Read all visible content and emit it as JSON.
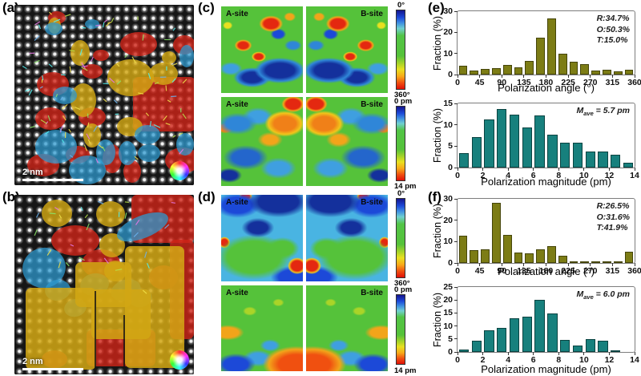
{
  "panel_a": {
    "label": "(a)",
    "scale_bar": "2 nm"
  },
  "panel_b": {
    "label": "(b)",
    "scale_bar": "2 nm"
  },
  "panel_c": {
    "label": "(c)",
    "angle_row": {
      "a_label": "A-site",
      "b_label": "B-site",
      "cbar_top": "0°",
      "cbar_bottom": "360°"
    },
    "magnitude_row": {
      "a_label": "A-site",
      "b_label": "B-site",
      "cbar_top": "0 pm",
      "cbar_bottom": "14 pm"
    }
  },
  "panel_d": {
    "label": "(d)",
    "angle_row": {
      "a_label": "A-site",
      "b_label": "B-site",
      "cbar_top": "0°",
      "cbar_bottom": "360°"
    },
    "magnitude_row": {
      "a_label": "A-site",
      "b_label": "B-site",
      "cbar_top": "0 pm",
      "cbar_bottom": "14 pm"
    }
  },
  "panel_e": {
    "label": "(e)"
  },
  "panel_f": {
    "label": "(f)"
  },
  "colors": {
    "olive_bar": "#7c7c15",
    "olive_edge": "#45450a",
    "teal_bar": "#17807d",
    "teal_edge": "#0a4341",
    "domain_red": "#cf2418",
    "domain_blue": "#2e9ad0",
    "domain_yellow": "#d2a714"
  },
  "chart_data": [
    {
      "id": "e_polarization_angle",
      "type": "bar",
      "xlabel": "Polarization angle (°)",
      "ylabel": "Fraction (%)",
      "xlim": [
        0,
        360
      ],
      "ylim": [
        0,
        30
      ],
      "xticks": [
        0,
        45,
        90,
        135,
        180,
        225,
        270,
        315,
        360
      ],
      "yticks": [
        0,
        10,
        20,
        30
      ],
      "bin_width": 22.5,
      "values": [
        4.3,
        1.8,
        2.5,
        2.9,
        4.6,
        3.4,
        6.4,
        17.5,
        26.5,
        10.0,
        6.2,
        5.0,
        1.9,
        2.2,
        1.5,
        2.4
      ],
      "annotation_lines": [
        "R:34.7%",
        "O:50.3%",
        "T:15.0%"
      ],
      "bar_color": "#7c7c15",
      "bar_edge": "#45450a"
    },
    {
      "id": "e_polarization_magnitude",
      "type": "bar",
      "xlabel": "Polarization magnitude (pm)",
      "ylabel": "Fraction (%)",
      "xlim": [
        0,
        14
      ],
      "ylim": [
        0,
        15
      ],
      "xticks": [
        0,
        2,
        4,
        6,
        8,
        10,
        12,
        14
      ],
      "yticks": [
        0,
        5,
        10,
        15
      ],
      "bin_width": 1,
      "values": [
        3.3,
        7.2,
        11.2,
        13.7,
        12.4,
        9.3,
        12.2,
        7.7,
        5.8,
        5.8,
        3.7,
        3.8,
        3.0,
        1.2
      ],
      "annotation_math": {
        "var": "M",
        "sub": "ave",
        "rest": " = 5.7 pm"
      },
      "bar_color": "#17807d",
      "bar_edge": "#0a4341"
    },
    {
      "id": "f_polarization_angle",
      "type": "bar",
      "xlabel": "Polarization angle (°)",
      "ylabel": "Fraction (%)",
      "xlim": [
        0,
        360
      ],
      "ylim": [
        0,
        30
      ],
      "xticks": [
        0,
        45,
        90,
        135,
        180,
        225,
        270,
        315,
        360
      ],
      "yticks": [
        0,
        10,
        20,
        30
      ],
      "bin_width": 22.5,
      "values": [
        12.7,
        6.0,
        6.2,
        28.0,
        13.2,
        4.8,
        4.4,
        6.5,
        7.8,
        3.2,
        0.9,
        0.2,
        0.4,
        0.2,
        0.8,
        5.2
      ],
      "annotation_lines": [
        "R:26.5%",
        "O:31.6%",
        "T:41.9%"
      ],
      "bar_color": "#7c7c15",
      "bar_edge": "#45450a"
    },
    {
      "id": "f_polarization_magnitude",
      "type": "bar",
      "xlabel": "Polarization magnitude (pm)",
      "ylabel": "Fraction (%)",
      "xlim": [
        0,
        14
      ],
      "ylim": [
        0,
        25
      ],
      "xticks": [
        0,
        2,
        4,
        6,
        8,
        10,
        12,
        14
      ],
      "yticks": [
        0,
        5,
        10,
        15,
        20,
        25
      ],
      "bin_width": 1,
      "values": [
        1.0,
        4.3,
        8.2,
        9.2,
        12.9,
        13.6,
        20.0,
        14.7,
        4.6,
        2.5,
        5.0,
        4.3,
        0.2,
        0.0
      ],
      "annotation_math": {
        "var": "M",
        "sub": "ave",
        "rest": " = 6.0 pm"
      },
      "bar_color": "#17807d",
      "bar_edge": "#0a4341"
    }
  ]
}
